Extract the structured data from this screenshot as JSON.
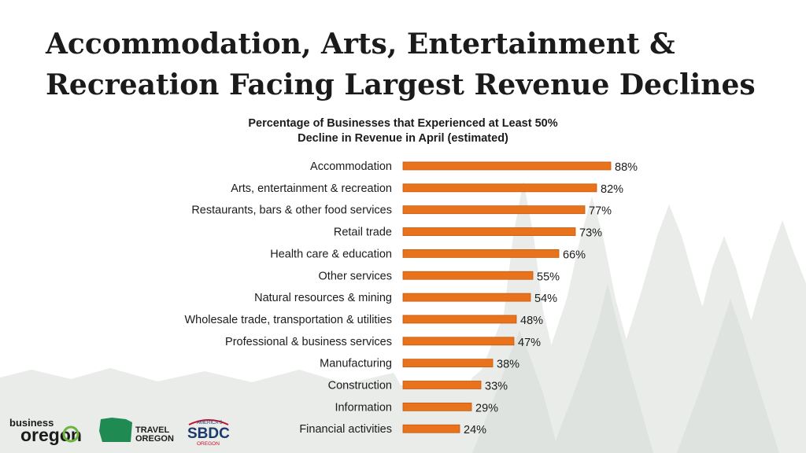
{
  "slide": {
    "title_line1": "Accommodation, Arts, Entertainment &",
    "title_line2": "Recreation Facing Largest Revenue Declines"
  },
  "logos": {
    "business_oregon": {
      "small": "business",
      "big": "oregon"
    },
    "travel_oregon": {
      "line1": "TRAVEL",
      "line2": "OREGON"
    },
    "sbdc": {
      "top": "AMERICA'S",
      "main": "SBDC",
      "bottom": "OREGON"
    }
  },
  "colors": {
    "bar": "#e8731c",
    "bar_outline": "#c25a10",
    "text": "#1b1b1b",
    "tree": "#e9ece9"
  },
  "chart_data": {
    "type": "bar",
    "orientation": "horizontal",
    "title": "Percentage of Businesses that Experienced at Least 50% Decline in Revenue in April (estimated)",
    "title_lines": [
      "Percentage of Businesses that Experienced at Least 50%",
      "Decline in Revenue in April (estimated)"
    ],
    "categories": [
      "Accommodation",
      "Arts, entertainment & recreation",
      "Restaurants, bars & other food services",
      "Retail trade",
      "Health care & education",
      "Other services",
      "Natural resources & mining",
      "Wholesale trade, transportation & utilities",
      "Professional & business services",
      "Manufacturing",
      "Construction",
      "Information",
      "Financial activities"
    ],
    "values": [
      88,
      82,
      77,
      73,
      66,
      55,
      54,
      48,
      47,
      38,
      33,
      29,
      24
    ],
    "data_labels": [
      "88%",
      "82%",
      "77%",
      "73%",
      "66%",
      "55%",
      "54%",
      "48%",
      "47%",
      "38%",
      "33%",
      "29%",
      "24%"
    ],
    "xlim": [
      0,
      100
    ],
    "grid": false,
    "legend": "none"
  }
}
